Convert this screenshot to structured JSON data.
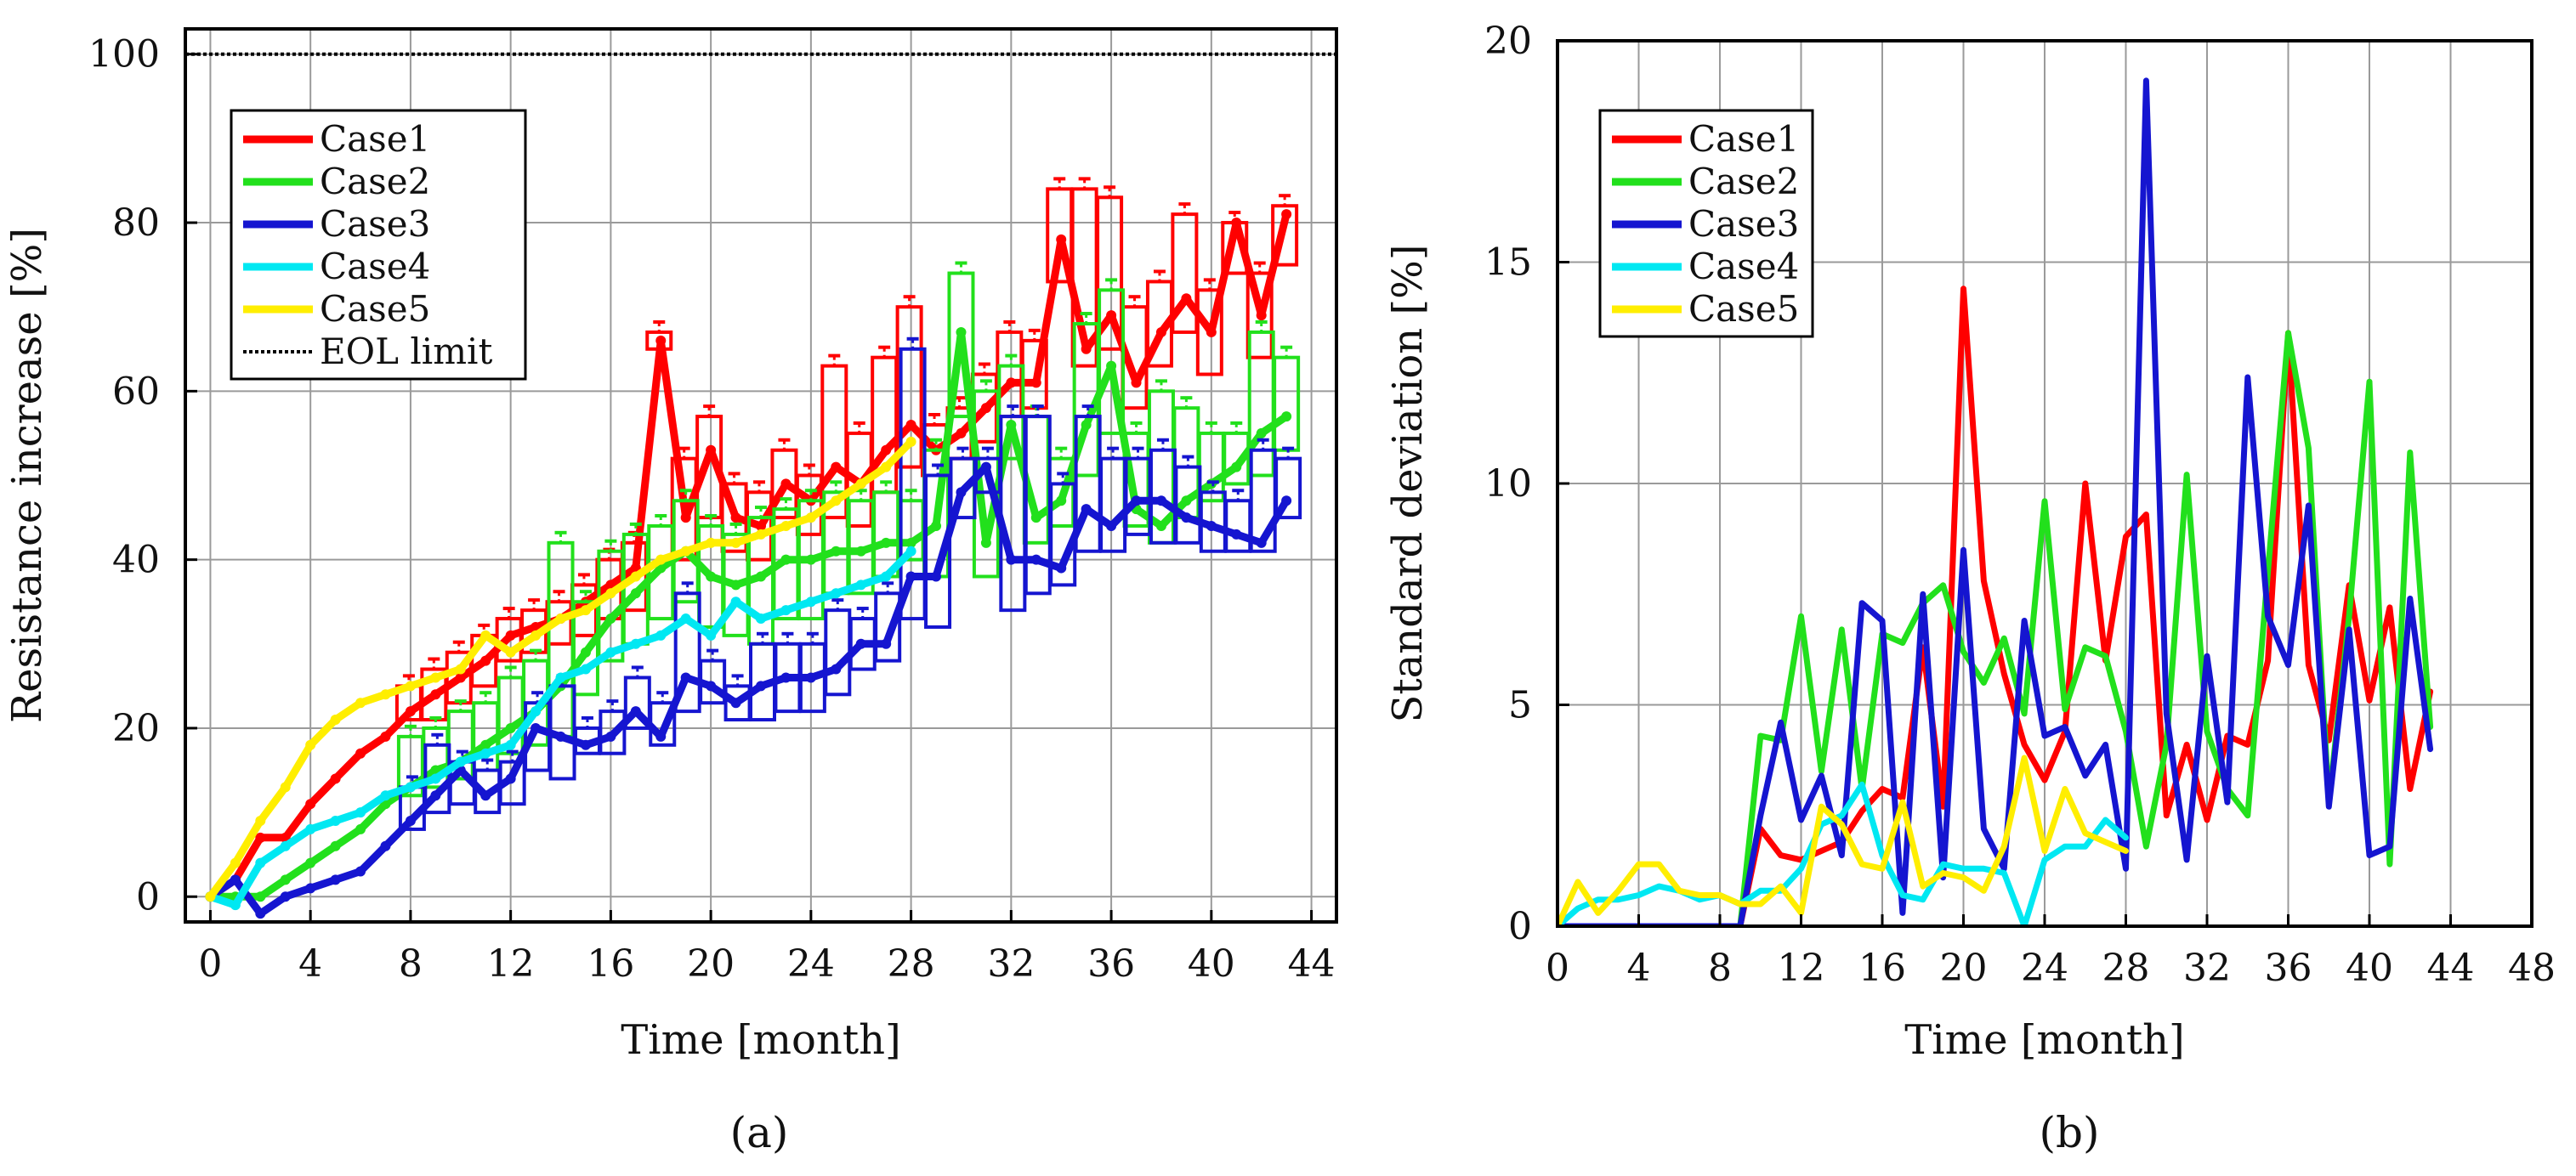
{
  "chart_data": [
    {
      "panel": "(a)",
      "type": "line",
      "title": "",
      "xlabel": "Time [month]",
      "ylabel": "Resistance increase [%]",
      "xlim": [
        -1,
        45
      ],
      "ylim": [
        -3,
        103
      ],
      "xticks": [
        0,
        4,
        8,
        12,
        16,
        20,
        24,
        28,
        32,
        36,
        40,
        44
      ],
      "yticks": [
        0,
        20,
        40,
        60,
        80,
        100
      ],
      "grid": true,
      "legend_position": "top-left",
      "eol_limit": 100,
      "series": [
        {
          "name": "Case1",
          "color": "#ff0000",
          "x": [
            0,
            1,
            2,
            3,
            4,
            5,
            6,
            7,
            8,
            9,
            10,
            11,
            12,
            13,
            14,
            15,
            16,
            17,
            18,
            19,
            20,
            21,
            22,
            23,
            24,
            25,
            26,
            27,
            28,
            29,
            30,
            31,
            32,
            33,
            34,
            35,
            36,
            37,
            38,
            39,
            40,
            41,
            42,
            43
          ],
          "y": [
            0,
            2,
            7,
            7,
            11,
            14,
            17,
            19,
            22,
            24,
            26,
            28,
            31,
            32,
            33,
            35,
            37,
            39,
            66,
            45,
            53,
            45,
            44,
            49,
            47,
            51,
            49,
            53,
            56,
            53,
            55,
            58,
            61,
            61,
            78,
            65,
            69,
            61,
            67,
            71,
            67,
            80,
            69,
            81
          ],
          "box_low": [
            0,
            0,
            0,
            0,
            0,
            0,
            0,
            0,
            21,
            21,
            23,
            25,
            28,
            29,
            30,
            31,
            33,
            34,
            65,
            40,
            45,
            41,
            40,
            45,
            43,
            45,
            44,
            48,
            51,
            50,
            52,
            54,
            57,
            58,
            73,
            63,
            65,
            58,
            63,
            67,
            62,
            74,
            64,
            75
          ],
          "box_high": [
            0,
            0,
            0,
            0,
            0,
            0,
            0,
            0,
            25,
            27,
            29,
            31,
            33,
            34,
            35,
            37,
            40,
            42,
            67,
            52,
            57,
            49,
            48,
            53,
            50,
            63,
            55,
            64,
            70,
            56,
            58,
            62,
            67,
            66,
            84,
            84,
            83,
            70,
            73,
            81,
            72,
            80,
            74,
            82
          ]
        },
        {
          "name": "Case2",
          "color": "#22e01c",
          "x": [
            0,
            1,
            2,
            3,
            4,
            5,
            6,
            7,
            8,
            9,
            10,
            11,
            12,
            13,
            14,
            15,
            16,
            17,
            18,
            19,
            20,
            21,
            22,
            23,
            24,
            25,
            26,
            27,
            28,
            29,
            30,
            31,
            32,
            33,
            34,
            35,
            36,
            37,
            38,
            39,
            40,
            41,
            42,
            43
          ],
          "y": [
            0,
            0,
            0,
            2,
            4,
            6,
            8,
            11,
            13,
            15,
            16,
            18,
            20,
            22,
            25,
            29,
            33,
            36,
            39,
            41,
            38,
            37,
            38,
            40,
            40,
            41,
            41,
            42,
            42,
            44,
            67,
            42,
            56,
            45,
            47,
            56,
            63,
            46,
            44,
            47,
            49,
            51,
            55,
            57
          ],
          "box_low": [
            0,
            0,
            0,
            0,
            0,
            0,
            0,
            0,
            12,
            13,
            14,
            15,
            17,
            18,
            19,
            24,
            28,
            30,
            33,
            35,
            32,
            31,
            30,
            33,
            33,
            36,
            36,
            38,
            40,
            38,
            57,
            38,
            52,
            42,
            44,
            50,
            55,
            44,
            42,
            45,
            47,
            49,
            50,
            53
          ],
          "box_high": [
            0,
            0,
            0,
            0,
            0,
            0,
            0,
            0,
            19,
            20,
            22,
            23,
            26,
            28,
            42,
            35,
            41,
            43,
            44,
            47,
            44,
            43,
            45,
            46,
            47,
            48,
            47,
            48,
            47,
            53,
            74,
            60,
            63,
            57,
            52,
            68,
            72,
            55,
            60,
            58,
            55,
            55,
            67,
            64
          ]
        },
        {
          "name": "Case3",
          "color": "#1515d0",
          "x": [
            0,
            1,
            2,
            3,
            4,
            5,
            6,
            7,
            8,
            9,
            10,
            11,
            12,
            13,
            14,
            15,
            16,
            17,
            18,
            19,
            20,
            21,
            22,
            23,
            24,
            25,
            26,
            27,
            28,
            29,
            30,
            31,
            32,
            33,
            34,
            35,
            36,
            37,
            38,
            39,
            40,
            41,
            42,
            43
          ],
          "y": [
            0,
            2,
            -2,
            0,
            1,
            2,
            3,
            6,
            9,
            12,
            15,
            12,
            14,
            20,
            19,
            18,
            19,
            22,
            19,
            26,
            25,
            23,
            25,
            26,
            26,
            27,
            30,
            30,
            38,
            38,
            48,
            51,
            40,
            40,
            39,
            46,
            44,
            47,
            47,
            45,
            44,
            43,
            42,
            47
          ],
          "box_low": [
            0,
            0,
            0,
            0,
            0,
            0,
            0,
            0,
            8,
            10,
            11,
            10,
            11,
            15,
            14,
            17,
            17,
            20,
            18,
            22,
            23,
            21,
            21,
            22,
            22,
            24,
            27,
            28,
            33,
            32,
            45,
            48,
            34,
            36,
            37,
            41,
            41,
            43,
            42,
            42,
            41,
            41,
            41,
            45
          ],
          "box_high": [
            0,
            0,
            0,
            0,
            0,
            0,
            0,
            0,
            13,
            18,
            16,
            15,
            16,
            23,
            25,
            20,
            22,
            26,
            23,
            36,
            28,
            25,
            30,
            30,
            30,
            34,
            33,
            36,
            65,
            50,
            52,
            52,
            57,
            57,
            49,
            57,
            52,
            52,
            53,
            51,
            48,
            47,
            53,
            52
          ]
        },
        {
          "name": "Case4",
          "color": "#00e8f2",
          "x": [
            0,
            1,
            2,
            3,
            4,
            5,
            6,
            7,
            8,
            9,
            10,
            11,
            12,
            13,
            14,
            15,
            16,
            17,
            18,
            19,
            20,
            21,
            22,
            23,
            24,
            25,
            26,
            27,
            28
          ],
          "y": [
            0,
            -1,
            4,
            6,
            8,
            9,
            10,
            12,
            13,
            14,
            16,
            17,
            18,
            22,
            26,
            27,
            29,
            30,
            31,
            33,
            31,
            35,
            33,
            34,
            35,
            36,
            37,
            38,
            41
          ],
          "box_low": [],
          "box_high": []
        },
        {
          "name": "Case5",
          "color": "#ffee00",
          "x": [
            0,
            1,
            2,
            3,
            4,
            5,
            6,
            7,
            8,
            9,
            10,
            11,
            12,
            13,
            14,
            15,
            16,
            17,
            18,
            19,
            20,
            21,
            22,
            23,
            24,
            25,
            26,
            27,
            28
          ],
          "y": [
            0,
            4,
            9,
            13,
            18,
            21,
            23,
            24,
            25,
            26,
            27,
            31,
            29,
            31,
            33,
            34,
            36,
            38,
            40,
            41,
            42,
            42,
            43,
            44,
            45,
            47,
            49,
            51,
            54
          ],
          "box_low": [],
          "box_high": []
        }
      ]
    },
    {
      "panel": "(b)",
      "type": "line",
      "title": "",
      "xlabel": "Time [month]",
      "ylabel": "Standard deviation [%]",
      "xlim": [
        0,
        48
      ],
      "ylim": [
        0,
        20
      ],
      "xticks": [
        0,
        4,
        8,
        12,
        16,
        20,
        24,
        28,
        32,
        36,
        40,
        44,
        48
      ],
      "yticks": [
        0,
        5,
        10,
        15,
        20
      ],
      "grid": true,
      "legend_position": "top-left",
      "series": [
        {
          "name": "Case1",
          "color": "#ff0000",
          "x": [
            0,
            1,
            2,
            3,
            4,
            5,
            6,
            7,
            8,
            9,
            10,
            11,
            12,
            13,
            14,
            15,
            16,
            17,
            18,
            19,
            20,
            21,
            22,
            23,
            24,
            25,
            26,
            27,
            28,
            29,
            30,
            31,
            32,
            33,
            34,
            35,
            36,
            37,
            38,
            39,
            40,
            41,
            42,
            43
          ],
          "y": [
            0,
            0,
            0,
            0,
            0,
            0,
            0,
            0,
            0,
            0,
            2.2,
            1.6,
            1.5,
            1.7,
            1.9,
            2.6,
            3.1,
            2.9,
            6.3,
            2.7,
            14.4,
            7.8,
            5.7,
            4.1,
            3.3,
            4.4,
            10.0,
            6.0,
            8.8,
            9.3,
            2.5,
            4.1,
            2.4,
            4.3,
            4.1,
            6.0,
            13.4,
            5.9,
            4.2,
            7.7,
            5.1,
            7.2,
            3.1,
            5.3
          ]
        },
        {
          "name": "Case2",
          "color": "#22e01c",
          "x": [
            0,
            1,
            2,
            3,
            4,
            5,
            6,
            7,
            8,
            9,
            10,
            11,
            12,
            13,
            14,
            15,
            16,
            17,
            18,
            19,
            20,
            21,
            22,
            23,
            24,
            25,
            26,
            27,
            28,
            29,
            30,
            31,
            32,
            33,
            34,
            35,
            36,
            37,
            38,
            39,
            40,
            41,
            42,
            43
          ],
          "y": [
            0,
            0,
            0,
            0,
            0,
            0,
            0,
            0,
            0,
            0,
            4.3,
            4.2,
            7.0,
            3.5,
            6.7,
            3.1,
            6.6,
            6.4,
            7.3,
            7.7,
            6.2,
            5.5,
            6.5,
            4.8,
            9.6,
            4.9,
            6.3,
            6.1,
            4.4,
            1.8,
            4.1,
            10.2,
            4.4,
            3.1,
            2.5,
            8.0,
            13.4,
            10.8,
            2.8,
            7.0,
            12.3,
            1.4,
            10.7,
            4.5
          ]
        },
        {
          "name": "Case3",
          "color": "#1515d0",
          "x": [
            0,
            1,
            2,
            3,
            4,
            5,
            6,
            7,
            8,
            9,
            10,
            11,
            12,
            13,
            14,
            15,
            16,
            17,
            18,
            19,
            20,
            21,
            22,
            23,
            24,
            25,
            26,
            27,
            28,
            29,
            30,
            31,
            32,
            33,
            34,
            35,
            36,
            37,
            38,
            39,
            40,
            41,
            42,
            43
          ],
          "y": [
            0,
            0,
            0,
            0,
            0,
            0,
            0,
            0,
            0,
            0,
            2.5,
            4.6,
            2.4,
            3.4,
            1.6,
            7.3,
            6.9,
            0.3,
            7.5,
            1.1,
            8.5,
            2.2,
            1.3,
            6.9,
            4.3,
            4.5,
            3.4,
            4.1,
            1.3,
            19.1,
            4.8,
            1.5,
            6.1,
            2.8,
            12.4,
            7.0,
            5.9,
            9.5,
            2.7,
            6.7,
            1.6,
            1.8,
            7.4,
            4.0
          ]
        },
        {
          "name": "Case4",
          "color": "#00e8f2",
          "x": [
            0,
            1,
            2,
            3,
            4,
            5,
            6,
            7,
            8,
            9,
            10,
            11,
            12,
            13,
            14,
            15,
            16,
            17,
            18,
            19,
            20,
            21,
            22,
            23,
            24,
            25,
            26,
            27,
            28
          ],
          "y": [
            0,
            0.4,
            0.6,
            0.6,
            0.7,
            0.9,
            0.8,
            0.6,
            0.7,
            0.5,
            0.8,
            0.8,
            1.3,
            2.3,
            2.5,
            3.2,
            1.6,
            0.7,
            0.6,
            1.4,
            1.3,
            1.3,
            1.2,
            0.0,
            1.5,
            1.8,
            1.8,
            2.4,
            2.0
          ]
        },
        {
          "name": "Case5",
          "color": "#ffee00",
          "x": [
            0,
            1,
            2,
            3,
            4,
            5,
            6,
            7,
            8,
            9,
            10,
            11,
            12,
            13,
            14,
            15,
            16,
            17,
            18,
            19,
            20,
            21,
            22,
            23,
            24,
            25,
            26,
            27,
            28
          ],
          "y": [
            0,
            1.0,
            0.3,
            0.8,
            1.4,
            1.4,
            0.8,
            0.7,
            0.7,
            0.5,
            0.5,
            0.9,
            0.3,
            2.7,
            2.3,
            1.4,
            1.3,
            2.8,
            0.9,
            1.2,
            1.1,
            0.8,
            1.8,
            3.8,
            1.7,
            3.1,
            2.1,
            1.9,
            1.7
          ]
        }
      ]
    }
  ],
  "labels": {
    "eol_legend": "EOL limit"
  }
}
